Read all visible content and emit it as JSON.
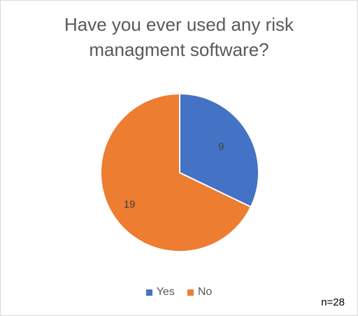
{
  "chart_data": {
    "type": "pie",
    "title": "Have you ever used any risk managment software?",
    "title_lines": [
      "Have you ever used any risk",
      "managment software?"
    ],
    "slices": [
      {
        "label": "Yes",
        "value": 9,
        "color": "#4472C4"
      },
      {
        "label": "No",
        "value": 19,
        "color": "#ED7D31"
      }
    ],
    "data_labels": [
      "9",
      "19"
    ],
    "legend": {
      "placement": "bottom",
      "entries": [
        "Yes",
        "No"
      ]
    },
    "note": "n=28"
  }
}
